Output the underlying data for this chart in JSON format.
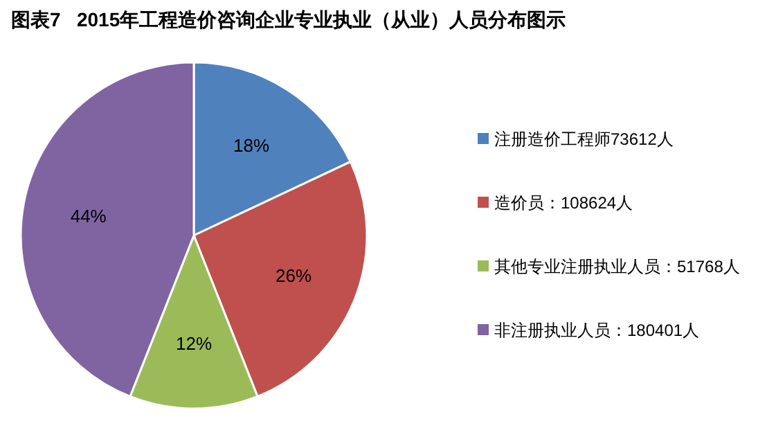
{
  "chart_data": {
    "type": "pie",
    "title": "图表7   2015年工程造价咨询企业专业执业（从业）人员分布图示",
    "categories": [
      "注册造价工程师73612人",
      "造价员：108624人",
      "其他专业注册执业人员：51768人",
      "非注册执业人员：180401人"
    ],
    "values": [
      18,
      26,
      12,
      44
    ],
    "value_labels": [
      "18%",
      "26%",
      "12%",
      "44%"
    ],
    "colors": [
      "#4f81bd",
      "#c0504d",
      "#9bbb59",
      "#8064a2"
    ],
    "legend": "right"
  }
}
